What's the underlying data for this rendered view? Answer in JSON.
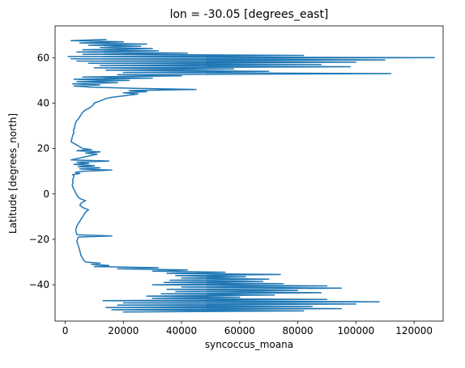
{
  "chart_data": {
    "type": "line",
    "title": "lon = -30.05 [degrees_east]",
    "xlabel": "syncoccus_moana",
    "ylabel": "Latitude [degrees_north]",
    "xlim": [
      -3500,
      130000
    ],
    "ylim": [
      -56,
      74
    ],
    "xticks": [
      0,
      20000,
      40000,
      60000,
      80000,
      100000,
      120000
    ],
    "xtick_labels": [
      "0",
      "20000",
      "40000",
      "60000",
      "80000",
      "100000",
      "120000"
    ],
    "yticks": [
      -40,
      -20,
      0,
      20,
      40,
      60
    ],
    "ytick_labels": [
      "−40",
      "−20",
      "0",
      "20",
      "40",
      "60"
    ],
    "grid": false,
    "series": [
      {
        "color": "#1f77b4",
        "lat": [
          68.0,
          67.5,
          67.0,
          66.5,
          66.0,
          65.5,
          65.0,
          64.5,
          64.0,
          63.5,
          63.0,
          62.5,
          62.0,
          61.5,
          61.0,
          60.5,
          60.0,
          59.5,
          59.0,
          58.5,
          58.0,
          57.5,
          57.0,
          56.5,
          56.0,
          55.5,
          55.0,
          54.5,
          54.0,
          53.5,
          53.0,
          52.5,
          52.0,
          51.5,
          51.0,
          50.5,
          50.0,
          49.5,
          49.0,
          48.5,
          48.0,
          47.5,
          47.0,
          46.5,
          46.0,
          45.5,
          45.0,
          44.5,
          44.0,
          43.5,
          43.0,
          42.5,
          42.0,
          41.5,
          41.0,
          40.5,
          40.0,
          39.0,
          38.0,
          37.0,
          36.0,
          35.0,
          34.0,
          33.0,
          32.0,
          31.0,
          30.0,
          29.0,
          28.0,
          27.0,
          26.0,
          25.0,
          24.0,
          23.0,
          20.0,
          19.5,
          19.0,
          18.5,
          18.0,
          17.5,
          15.0,
          14.5,
          14.0,
          13.5,
          13.0,
          12.5,
          12.0,
          11.5,
          11.0,
          10.5,
          10.0,
          9.5,
          9.0,
          8.5,
          8.0,
          7.0,
          6.0,
          5.0,
          4.0,
          3.0,
          2.0,
          1.0,
          0.0,
          -1.0,
          -2.0,
          -3.0,
          -4.0,
          -5.0,
          -6.0,
          -7.0,
          -8.0,
          -9.0,
          -10.0,
          -11.0,
          -12.0,
          -13.0,
          -14.0,
          -15.0,
          -16.0,
          -17.0,
          -18.0,
          -18.5,
          -19.0,
          -20.0,
          -21.0,
          -22.0,
          -23.0,
          -24.0,
          -25.0,
          -26.0,
          -27.0,
          -28.0,
          -29.0,
          -30.0,
          -30.5,
          -31.0,
          -31.5,
          -32.0,
          -32.5,
          -33.0,
          -33.5,
          -34.0,
          -34.5,
          -35.0,
          -35.5,
          -36.0,
          -36.5,
          -37.0,
          -37.5,
          -38.0,
          -38.5,
          -39.0,
          -39.5,
          -40.0,
          -40.5,
          -41.0,
          -41.5,
          -42.0,
          -42.5,
          -43.0,
          -43.5,
          -44.0,
          -44.5,
          -45.0,
          -45.5,
          -46.0,
          -46.5,
          -47.0,
          -47.5,
          -48.0,
          -48.5,
          -49.0,
          -49.5,
          -50.0,
          -50.5,
          -51.0,
          -51.5,
          -52.0
        ],
        "values": [
          14000,
          2000,
          20000,
          5000,
          28000,
          8000,
          26000,
          12000,
          30000,
          6000,
          32000,
          4000,
          42000,
          6000,
          82000,
          1000,
          127000,
          2000,
          110000,
          4000,
          100000,
          8000,
          88000,
          12000,
          98000,
          10000,
          58000,
          14000,
          70000,
          20000,
          112000,
          18000,
          40000,
          6000,
          30000,
          3000,
          22000,
          4000,
          18000,
          2500,
          12000,
          3000,
          9000,
          24000,
          45000,
          22000,
          28000,
          20000,
          25000,
          22000,
          19000,
          16000,
          14000,
          13000,
          12000,
          11000,
          10000,
          9500,
          8500,
          7000,
          6000,
          5500,
          5000,
          4500,
          3800,
          3500,
          3300,
          3200,
          2800,
          3000,
          2600,
          2400,
          2200,
          2000,
          6000,
          9000,
          4000,
          12000,
          7000,
          11000,
          2000,
          15000,
          4000,
          8000,
          3000,
          10000,
          4500,
          12000,
          5000,
          16000,
          6000,
          3500,
          5000,
          2500,
          3000,
          2800,
          2500,
          2700,
          2400,
          2600,
          3000,
          3400,
          3800,
          4200,
          5000,
          7000,
          5500,
          5000,
          6000,
          8000,
          7000,
          6500,
          6000,
          5500,
          5000,
          4500,
          4000,
          3800,
          3600,
          3800,
          4000,
          16000,
          4500,
          4200,
          4000,
          4300,
          4500,
          4800,
          5000,
          5200,
          5400,
          5800,
          6200,
          7000,
          12000,
          9000,
          15000,
          10000,
          32000,
          18000,
          42000,
          30000,
          55000,
          35000,
          74000,
          38000,
          62000,
          40000,
          70000,
          36000,
          68000,
          34000,
          75000,
          30000,
          90000,
          40000,
          95000,
          35000,
          80000,
          38000,
          88000,
          33000,
          72000,
          28000,
          60000,
          30000,
          90000,
          13000,
          108000,
          20000,
          100000,
          18000,
          85000,
          14000,
          95000,
          16000,
          82000,
          20000,
          112000,
          25000,
          70000,
          30000
        ]
      }
    ]
  }
}
